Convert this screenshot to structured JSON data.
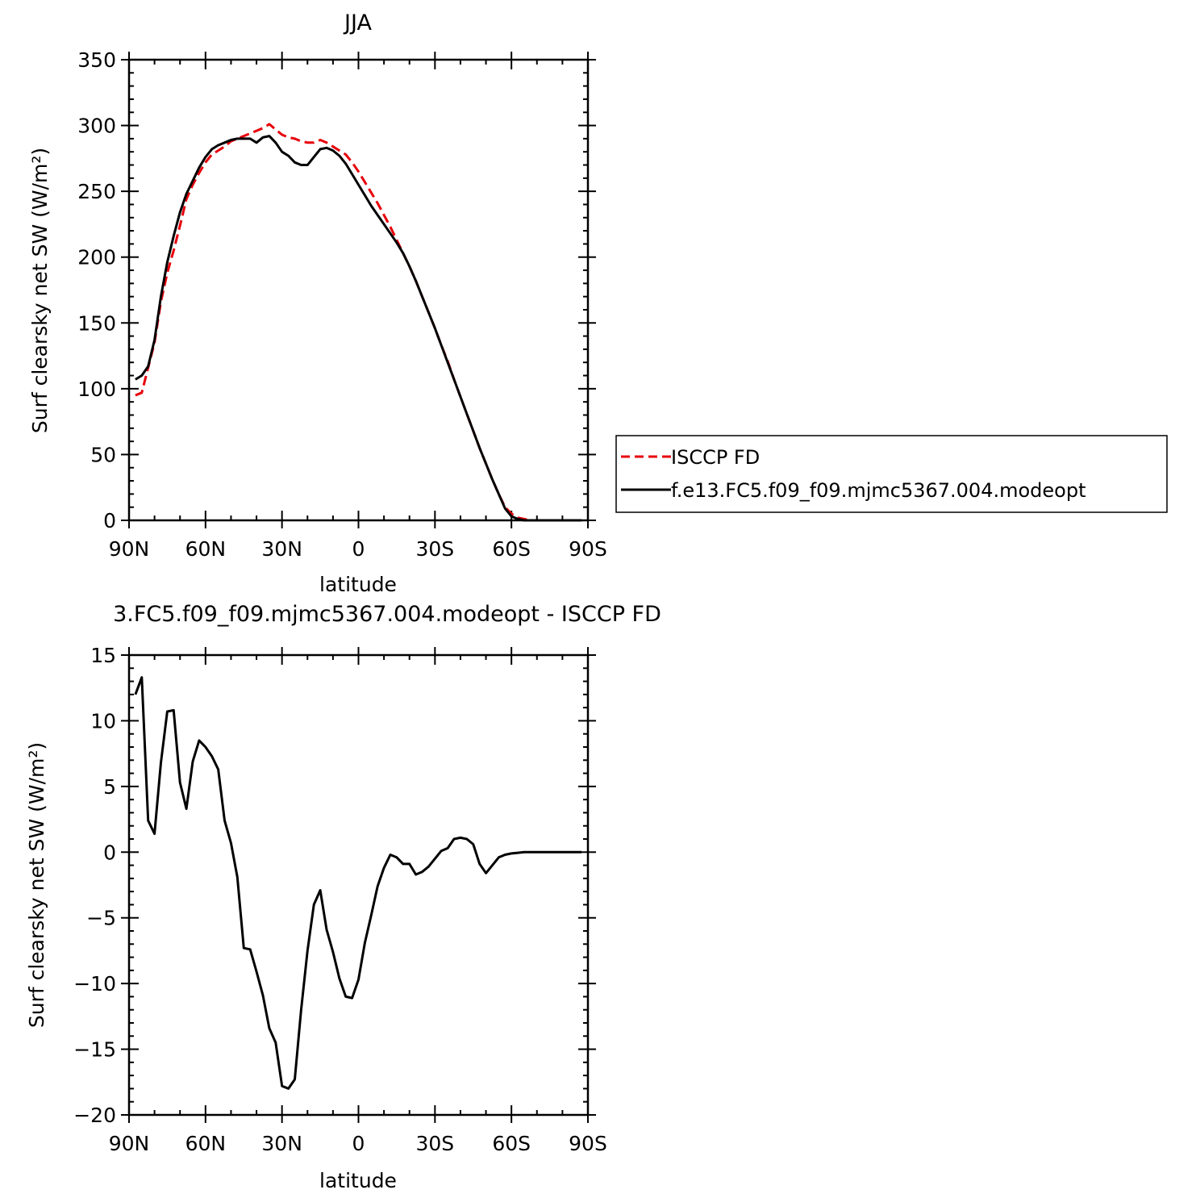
{
  "chart_data": [
    {
      "type": "line",
      "title": "JJA",
      "xlabel": "latitude",
      "ylabel": "Surf clearsky net SW (W/m²)",
      "xlim": [
        90,
        -90
      ],
      "ylim": [
        0,
        350
      ],
      "xticks": [
        {
          "value": 90,
          "label": "90N"
        },
        {
          "value": 60,
          "label": "60N"
        },
        {
          "value": 30,
          "label": "30N"
        },
        {
          "value": 0,
          "label": "0"
        },
        {
          "value": -30,
          "label": "30S"
        },
        {
          "value": -60,
          "label": "60S"
        },
        {
          "value": -90,
          "label": "90S"
        }
      ],
      "yticks": [
        0,
        50,
        100,
        150,
        200,
        250,
        300,
        350
      ],
      "legend_position": "right",
      "series": [
        {
          "name": "ISCCP FD",
          "color": "#e8000b",
          "dash": "dashed",
          "x": [
            87.5,
            85,
            82.5,
            80,
            77.5,
            75,
            72.5,
            70,
            67.5,
            65,
            62.5,
            60,
            57.5,
            55,
            52.5,
            50,
            47.5,
            45,
            42.5,
            40,
            37.5,
            35,
            32.5,
            30,
            27.5,
            25,
            22.5,
            20,
            17.5,
            15,
            12.5,
            10,
            7.5,
            5,
            2.5,
            0,
            -2.5,
            -5,
            -7.5,
            -10,
            -12.5,
            -15,
            -17.5,
            -20,
            -22.5,
            -25,
            -27.5,
            -30,
            -32.5,
            -35,
            -37.5,
            -40,
            -42.5,
            -45,
            -47.5,
            -50,
            -52.5,
            -55,
            -57.5,
            -60,
            -62.5,
            -65,
            -67.5,
            -70,
            -72.5,
            -75,
            -77.5,
            -80,
            -82.5,
            -85,
            -87.5
          ],
          "y": [
            95,
            97,
            116,
            135,
            166,
            188,
            205,
            224,
            244,
            255,
            264,
            272,
            278,
            281,
            284,
            288,
            290,
            292,
            294,
            296,
            298,
            301,
            297,
            293,
            291,
            290,
            288,
            287,
            287,
            289,
            287,
            284,
            281,
            278,
            272,
            265,
            257,
            249,
            241,
            232,
            223,
            213,
            203,
            193,
            182,
            170,
            158,
            146,
            133,
            121,
            107,
            94,
            81,
            68,
            55,
            43,
            31,
            20,
            10,
            5,
            2,
            1,
            0,
            0,
            0,
            0,
            0,
            0,
            0,
            0,
            0
          ]
        },
        {
          "name": "f.e13.FC5.f09_f09.mjmc5367.004.modeopt",
          "color": "#000000",
          "dash": "solid",
          "x": [
            87.5,
            85,
            82.5,
            80,
            77.5,
            75,
            72.5,
            70,
            67.5,
            65,
            62.5,
            60,
            57.5,
            55,
            52.5,
            50,
            47.5,
            45,
            42.5,
            40,
            37.5,
            35,
            32.5,
            30,
            27.5,
            25,
            22.5,
            20,
            17.5,
            15,
            12.5,
            10,
            7.5,
            5,
            2.5,
            0,
            -2.5,
            -5,
            -7.5,
            -10,
            -12.5,
            -15,
            -17.5,
            -20,
            -22.5,
            -25,
            -27.5,
            -30,
            -32.5,
            -35,
            -37.5,
            -40,
            -42.5,
            -45,
            -47.5,
            -50,
            -52.5,
            -55,
            -57.5,
            -60,
            -62.5,
            -65,
            -67.5,
            -70,
            -72.5,
            -75,
            -77.5,
            -80,
            -82.5,
            -85,
            -87.5
          ],
          "y": [
            107,
            110,
            117,
            137,
            170,
            196,
            216,
            234,
            248,
            258,
            268,
            276,
            282,
            285,
            287,
            289,
            290,
            290,
            290,
            287,
            291,
            292,
            287,
            280,
            277,
            272,
            270,
            270,
            276,
            282,
            283,
            281,
            277,
            271,
            263,
            255,
            247,
            239,
            232,
            225,
            218,
            211,
            203,
            193,
            182,
            170,
            158,
            146,
            133,
            120,
            107,
            94,
            81,
            68,
            55,
            43,
            31,
            20,
            9,
            3,
            1,
            0,
            0,
            0,
            0,
            0,
            0,
            0,
            0,
            0,
            0
          ]
        }
      ]
    },
    {
      "type": "line",
      "title": "3.FC5.f09_f09.mjmc5367.004.modeopt - ISCCP FD",
      "xlabel": "latitude",
      "ylabel": "Surf clearsky net SW (W/m²)",
      "xlim": [
        90,
        -90
      ],
      "ylim": [
        -20,
        15
      ],
      "xticks": [
        {
          "value": 90,
          "label": "90N"
        },
        {
          "value": 60,
          "label": "60N"
        },
        {
          "value": 30,
          "label": "30N"
        },
        {
          "value": 0,
          "label": "0"
        },
        {
          "value": -30,
          "label": "30S"
        },
        {
          "value": -60,
          "label": "60S"
        },
        {
          "value": -90,
          "label": "90S"
        }
      ],
      "yticks": [
        -20,
        -15,
        -10,
        -5,
        0,
        5,
        10,
        15
      ],
      "series": [
        {
          "color": "#000000",
          "dash": "solid",
          "x": [
            87.5,
            85,
            82.5,
            80,
            77.5,
            75,
            72.5,
            70,
            67.5,
            65,
            62.5,
            60,
            57.5,
            55,
            52.5,
            50,
            47.5,
            45,
            42.5,
            40,
            37.5,
            35,
            32.5,
            30,
            27.5,
            25,
            22.5,
            20,
            17.5,
            15,
            12.5,
            10,
            7.5,
            5,
            2.5,
            0,
            -2.5,
            -5,
            -7.5,
            -10,
            -12.5,
            -15,
            -17.5,
            -20,
            -22.5,
            -25,
            -27.5,
            -30,
            -32.5,
            -35,
            -37.5,
            -40,
            -42.5,
            -45,
            -47.5,
            -50,
            -52.5,
            -55,
            -57.5,
            -60,
            -62.5,
            -65,
            -67.5,
            -70,
            -72.5,
            -75,
            -77.5,
            -80,
            -82.5,
            -85,
            -87.5
          ],
          "y": [
            12,
            13.3,
            2.4,
            1.4,
            6.8,
            10.7,
            10.8,
            5.3,
            3.3,
            6.9,
            8.5,
            8.0,
            7.3,
            6.3,
            2.4,
            0.7,
            -1.9,
            -7.3,
            -7.4,
            -9.1,
            -10.9,
            -13.4,
            -14.5,
            -17.8,
            -18.0,
            -17.3,
            -12.0,
            -7.5,
            -4.0,
            -2.9,
            -5.9,
            -7.6,
            -9.6,
            -11.0,
            -11.1,
            -9.7,
            -6.9,
            -4.8,
            -2.6,
            -1.2,
            -0.2,
            -0.4,
            -0.9,
            -0.9,
            -1.7,
            -1.5,
            -1.1,
            -0.5,
            0.1,
            0.3,
            1.0,
            1.1,
            1.0,
            0.6,
            -0.9,
            -1.6,
            -1.0,
            -0.4,
            -0.2,
            -0.1,
            -0.05,
            0,
            0,
            0,
            0,
            0,
            0,
            0,
            0,
            0,
            0
          ]
        }
      ]
    }
  ]
}
